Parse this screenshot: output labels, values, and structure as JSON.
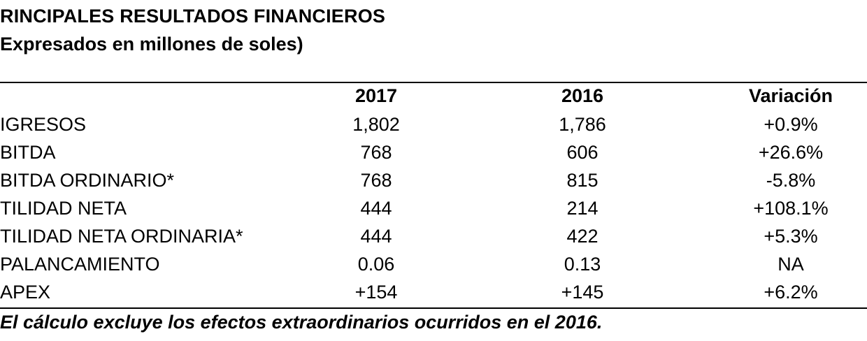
{
  "title": "RINCIPALES RESULTADOS FINANCIEROS",
  "subtitle": "Expresados en millones de soles)",
  "table": {
    "headers": [
      "",
      "2017",
      "2016",
      "Variación"
    ],
    "rows": [
      [
        "IGRESOS",
        "1,802",
        "1,786",
        "+0.9%"
      ],
      [
        "BITDA",
        "768",
        "606",
        "+26.6%"
      ],
      [
        "BITDA ORDINARIO*",
        "768",
        "815",
        "-5.8%"
      ],
      [
        "TILIDAD NETA",
        "444",
        "214",
        "+108.1%"
      ],
      [
        "TILIDAD NETA ORDINARIA*",
        "444",
        "422",
        "+5.3%"
      ],
      [
        "PALANCAMIENTO",
        "0.06",
        "0.13",
        "NA"
      ],
      [
        "APEX",
        "+154",
        "+145",
        "+6.2%"
      ]
    ]
  },
  "footnote": "El cálculo excluye los efectos extraordinarios ocurridos en el 2016."
}
